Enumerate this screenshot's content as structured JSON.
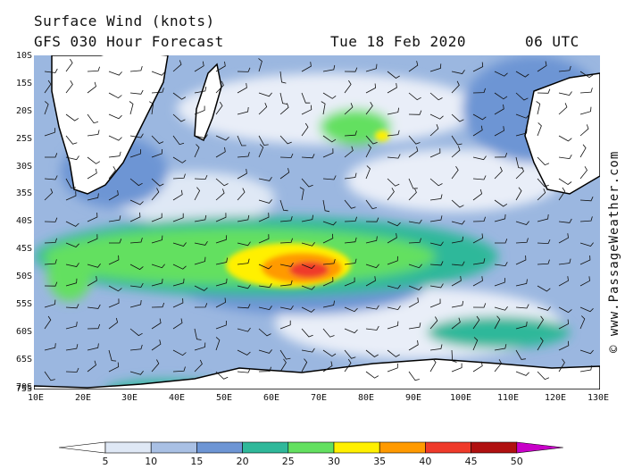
{
  "header": {
    "title": "Surface Wind (knots)",
    "subtitle": "GFS 030 Hour Forecast",
    "date": "Tue 18 Feb 2020",
    "time": "06 UTC"
  },
  "credit": "© www.PassageWeather.com",
  "map": {
    "region": "South Indian Ocean / Southern Ocean",
    "lat_labels": [
      "10S",
      "15S",
      "20S",
      "25S",
      "30S",
      "35S",
      "40S",
      "45S",
      "50S",
      "55S",
      "60S",
      "65S",
      "70S",
      "75S"
    ],
    "lon_labels": [
      "10E",
      "20E",
      "30E",
      "40E",
      "50E",
      "60E",
      "70E",
      "80E",
      "90E",
      "100E",
      "110E",
      "120E",
      "130E"
    ],
    "lat_range": [
      -75,
      -10
    ],
    "lon_range": [
      10,
      130
    ]
  },
  "legend": {
    "ticks": [
      "5",
      "10",
      "15",
      "20",
      "25",
      "30",
      "35",
      "40",
      "45",
      "50"
    ],
    "colors": [
      "#ffffff",
      "#dfe8f5",
      "#a9c0e4",
      "#6d95d4",
      "#2fb89a",
      "#63e060",
      "#fff000",
      "#ff9a00",
      "#ef3a2a",
      "#b01010",
      "#c800c8"
    ]
  }
}
